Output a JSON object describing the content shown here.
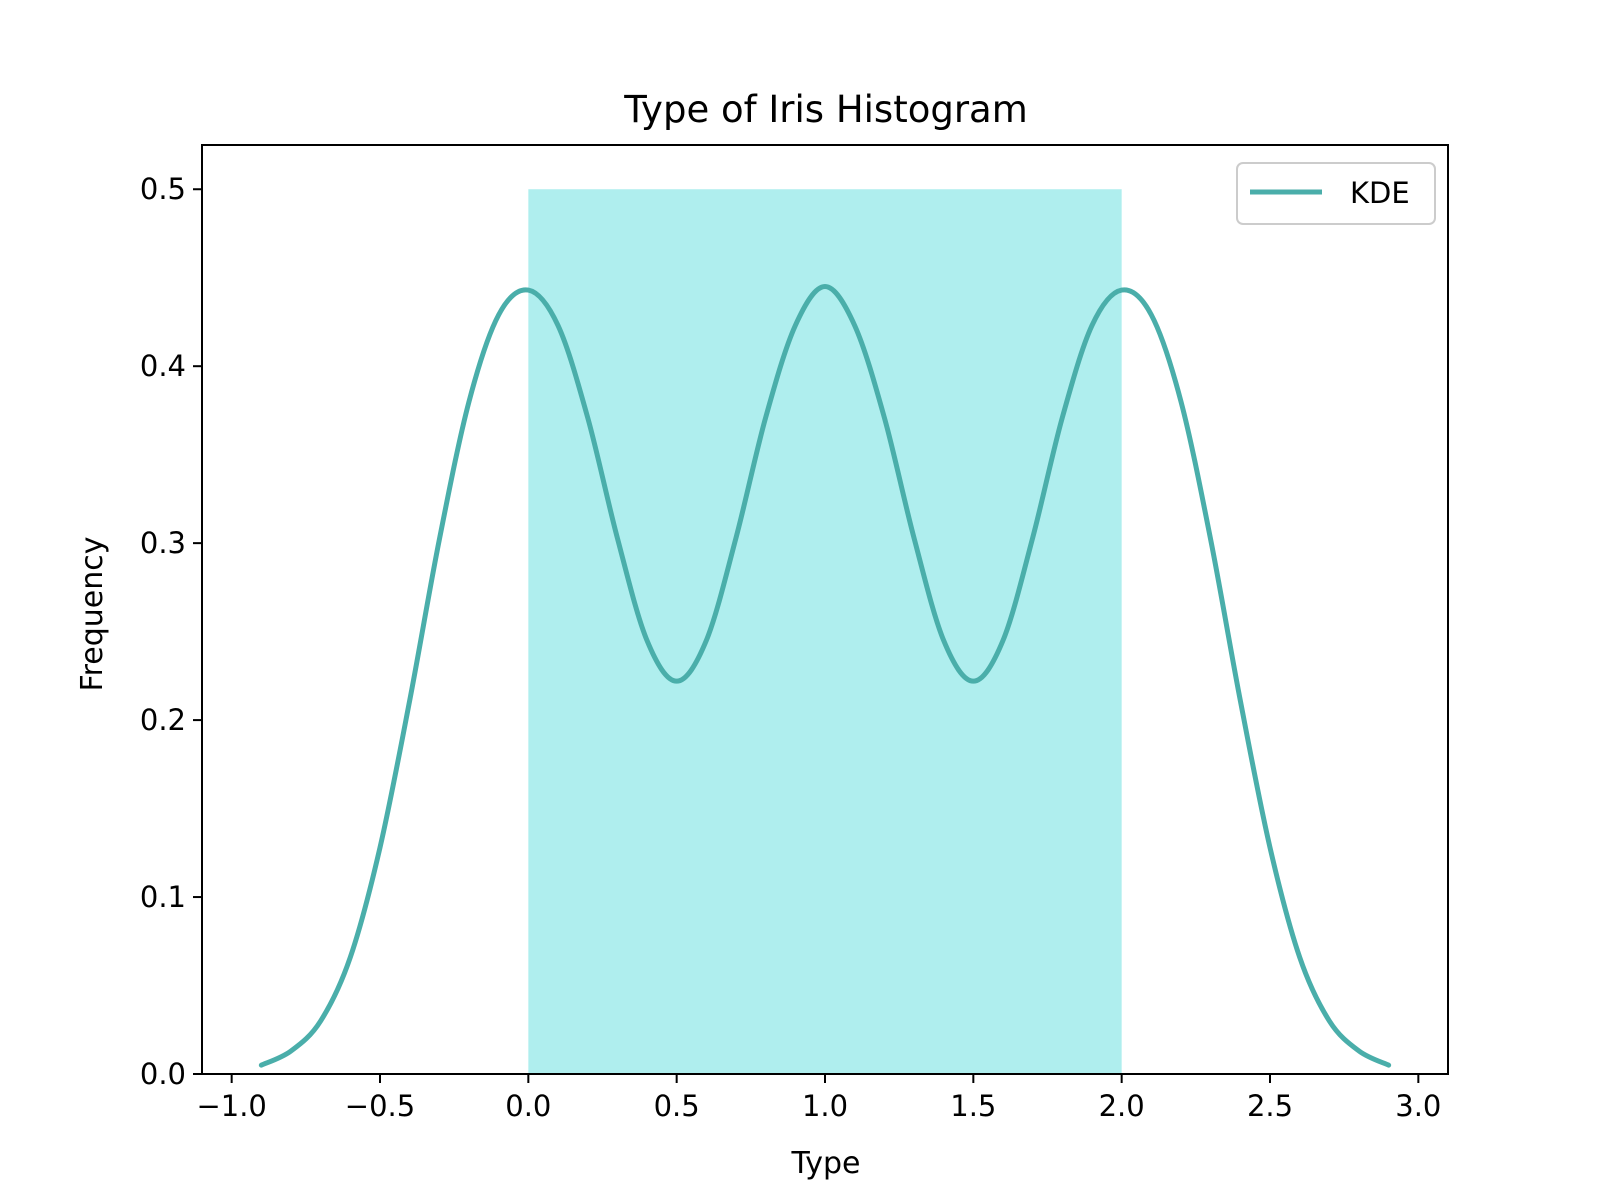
{
  "chart_data": {
    "type": "area",
    "title": "Type of Iris Histogram",
    "xlabel": "Type",
    "ylabel": "Frequency",
    "xlim": [
      -1.1,
      3.1
    ],
    "ylim": [
      0,
      0.525
    ],
    "x_ticks": [
      -1.0,
      -0.5,
      0.0,
      0.5,
      1.0,
      1.5,
      2.0,
      2.5,
      3.0
    ],
    "x_tick_labels": [
      "−1.0",
      "−0.5",
      "0.0",
      "0.5",
      "1.0",
      "1.5",
      "2.0",
      "2.5",
      "3.0"
    ],
    "y_ticks": [
      0.0,
      0.1,
      0.2,
      0.3,
      0.4,
      0.5
    ],
    "y_tick_labels": [
      "0.0",
      "0.1",
      "0.2",
      "0.3",
      "0.4",
      "0.5"
    ],
    "grid": false,
    "legend_position": "top-right",
    "histogram": {
      "bins": [
        {
          "x_start": 0.0,
          "x_end": 2.0,
          "value": 0.5
        }
      ],
      "color": "#afeeee"
    },
    "series": [
      {
        "name": "KDE",
        "color": "#4aaeaa",
        "x": [
          -0.9,
          -0.8,
          -0.7,
          -0.6,
          -0.5,
          -0.4,
          -0.3,
          -0.2,
          -0.1,
          0.0,
          0.1,
          0.2,
          0.3,
          0.4,
          0.5,
          0.6,
          0.7,
          0.8,
          0.9,
          1.0,
          1.1,
          1.2,
          1.3,
          1.4,
          1.5,
          1.6,
          1.7,
          1.8,
          1.9,
          2.0,
          2.1,
          2.2,
          2.3,
          2.4,
          2.5,
          2.6,
          2.7,
          2.8,
          2.9
        ],
        "y": [
          0.005,
          0.013,
          0.03,
          0.066,
          0.128,
          0.211,
          0.302,
          0.38,
          0.429,
          0.443,
          0.423,
          0.371,
          0.303,
          0.245,
          0.222,
          0.245,
          0.303,
          0.371,
          0.423,
          0.445,
          0.423,
          0.371,
          0.303,
          0.245,
          0.222,
          0.245,
          0.303,
          0.371,
          0.423,
          0.443,
          0.429,
          0.38,
          0.302,
          0.211,
          0.128,
          0.066,
          0.03,
          0.013,
          0.005
        ]
      }
    ]
  }
}
